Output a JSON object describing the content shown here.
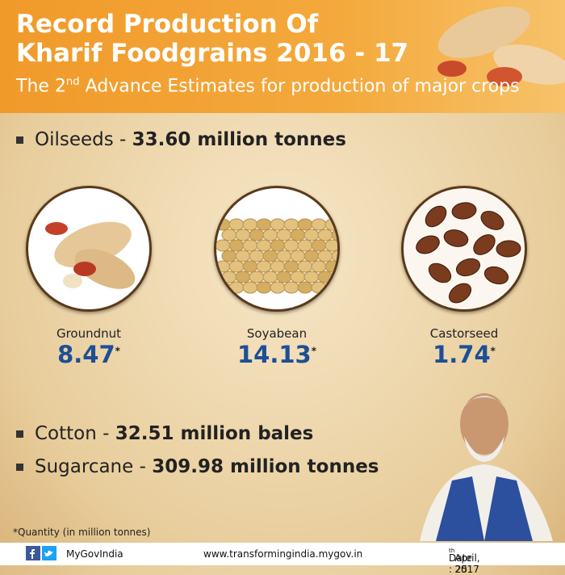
{
  "header": {
    "title_lines": [
      "Record Production Of",
      "Kharif Foodgrains 2016 - 17"
    ],
    "subtitle": {
      "before": "The 2",
      "sup": "nd",
      "after": " Advance Estimates for production of major crops"
    }
  },
  "oilseeds": {
    "label": "Oilseeds - ",
    "value": "33.60 million tonnes"
  },
  "crops": [
    {
      "name": "Groundnut",
      "value": "8.47",
      "marker": "*"
    },
    {
      "name": "Soyabean",
      "value": "14.13",
      "marker": "*"
    },
    {
      "name": "Castorseed",
      "value": "1.74",
      "marker": "*"
    }
  ],
  "items": [
    {
      "label": "Cotton - ",
      "value": "32.51 million bales"
    },
    {
      "label": "Sugarcane - ",
      "value": "309.98 million tonnes"
    }
  ],
  "footnote": "*Quantity (in million tonnes)",
  "footer": {
    "handle": "MyGovIndia",
    "url": "www.transformingindia.mygov.in",
    "date": {
      "before": "Date : 25",
      "sup": "th",
      "after": " April, 2017"
    }
  }
}
